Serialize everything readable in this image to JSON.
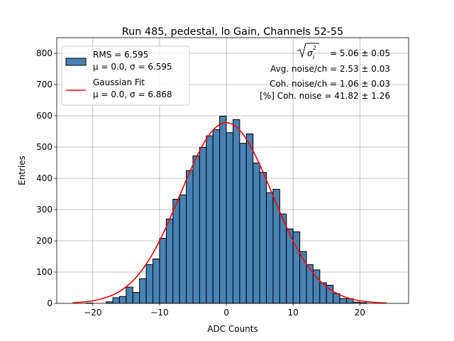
{
  "chart_data": {
    "type": "bar",
    "title": "Run 485, pedestal, lo Gain, Channels 52-55",
    "xlabel": "ADC Counts",
    "ylabel": "Entries",
    "xlim": [
      -25.4,
      27.3
    ],
    "ylim": [
      0,
      850
    ],
    "xticks": [
      -20,
      -10,
      0,
      10,
      20
    ],
    "yticks": [
      0,
      100,
      200,
      300,
      400,
      500,
      600,
      700,
      800
    ],
    "grid": true,
    "bin_width": 1,
    "bins": [
      {
        "x0": -21,
        "count": 1
      },
      {
        "x0": -18,
        "count": 5
      },
      {
        "x0": -17,
        "count": 18
      },
      {
        "x0": -16,
        "count": 22
      },
      {
        "x0": -15,
        "count": 52
      },
      {
        "x0": -14,
        "count": 35
      },
      {
        "x0": -13,
        "count": 79
      },
      {
        "x0": -12,
        "count": 124
      },
      {
        "x0": -11,
        "count": 142
      },
      {
        "x0": -10,
        "count": 208
      },
      {
        "x0": -9,
        "count": 270
      },
      {
        "x0": -8,
        "count": 333
      },
      {
        "x0": -7,
        "count": 347
      },
      {
        "x0": -6,
        "count": 425
      },
      {
        "x0": -5,
        "count": 472
      },
      {
        "x0": -4,
        "count": 499
      },
      {
        "x0": -3,
        "count": 536
      },
      {
        "x0": -2,
        "count": 556
      },
      {
        "x0": -1,
        "count": 599
      },
      {
        "x0": 0,
        "count": 546
      },
      {
        "x0": 1,
        "count": 588
      },
      {
        "x0": 2,
        "count": 512
      },
      {
        "x0": 3,
        "count": 542
      },
      {
        "x0": 4,
        "count": 449
      },
      {
        "x0": 5,
        "count": 419
      },
      {
        "x0": 6,
        "count": 354
      },
      {
        "x0": 7,
        "count": 365
      },
      {
        "x0": 8,
        "count": 286
      },
      {
        "x0": 9,
        "count": 238
      },
      {
        "x0": 10,
        "count": 229
      },
      {
        "x0": 11,
        "count": 166
      },
      {
        "x0": 12,
        "count": 124
      },
      {
        "x0": 13,
        "count": 107
      },
      {
        "x0": 14,
        "count": 66
      },
      {
        "x0": 15,
        "count": 58
      },
      {
        "x0": 16,
        "count": 31
      },
      {
        "x0": 17,
        "count": 15
      },
      {
        "x0": 18,
        "count": 15
      },
      {
        "x0": 19,
        "count": 4
      },
      {
        "x0": 20,
        "count": 2
      }
    ],
    "fit": {
      "type": "gaussian",
      "mu": 0.0,
      "sigma": 6.868,
      "amplitude": 578,
      "range": [
        -23,
        24
      ]
    },
    "colors": {
      "bar": "#4682b4",
      "bar_edge": "#000000",
      "fit": "#ff0000",
      "grid": "#b0b0b0"
    },
    "legend": {
      "placement": "upper-left",
      "entries": [
        {
          "line1": "RMS = 6.595",
          "line2": "μ = 0.0, σ = 6.595"
        },
        {
          "line1": "Gaussian Fit",
          "line2": "μ = 0.0, σ = 6.868"
        }
      ]
    },
    "annotations": {
      "sqrt_value": "= 5.06 ± 0.05",
      "avg_noise": "Avg. noise/ch = 2.53 ± 0.03",
      "coh_noise": "Coh. noise/ch = 1.06 ± 0.03",
      "coh_pct": "[%] Coh. noise = 41.82 ± 1.26"
    }
  }
}
